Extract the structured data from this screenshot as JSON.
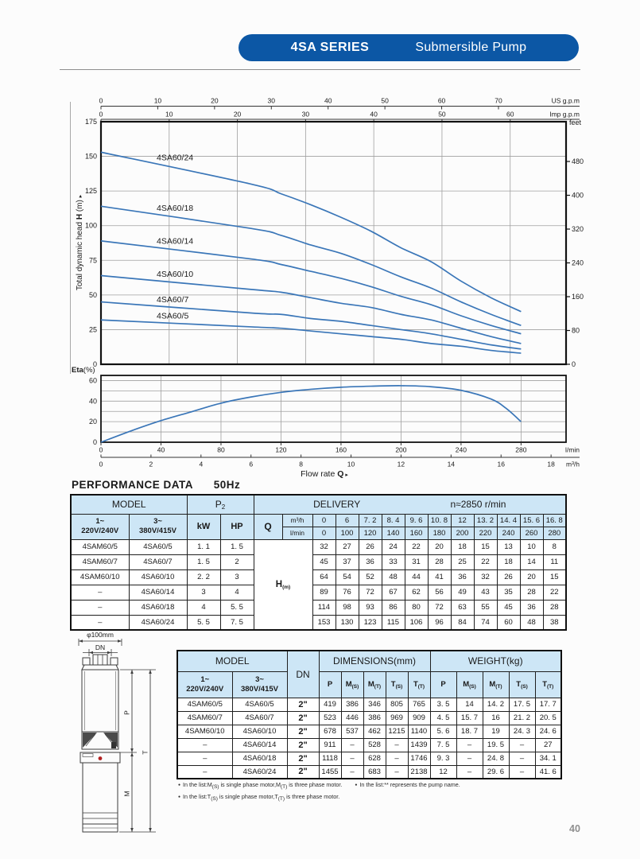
{
  "header": {
    "series": "4SA SERIES",
    "product": "Submersible Pump"
  },
  "page_number": "40",
  "colors": {
    "brand_blue": "#0c57a5",
    "curve_blue": "#3a76b8",
    "table_header_bg": "#cde6f6",
    "grid_gray": "#a0a0a0"
  },
  "chart_data": [
    {
      "type": "line",
      "id": "head-curves",
      "ylabel": "Total dynamic head H (m)",
      "ylim": [
        0,
        175
      ],
      "yticks": [
        0,
        25,
        50,
        75,
        100,
        125,
        150,
        175
      ],
      "right_axis": {
        "label": "feet",
        "ticks": [
          0,
          80,
          160,
          240,
          320,
          400,
          480
        ]
      },
      "top_axis_us": {
        "label": "US g.p.m",
        "ticks": [
          0,
          10,
          20,
          30,
          40,
          50,
          60,
          70
        ]
      },
      "top_axis_imp": {
        "label": "Imp g.p.m",
        "ticks": [
          0,
          10,
          20,
          30,
          40,
          50,
          60
        ]
      },
      "x_lmin": [
        0,
        100,
        120,
        140,
        160,
        180,
        200,
        220,
        240,
        260,
        280
      ],
      "series": [
        {
          "name": "4SA60/24",
          "values": [
            153,
            130,
            123,
            115,
            106,
            96,
            84,
            74,
            60,
            48,
            38
          ]
        },
        {
          "name": "4SA60/18",
          "values": [
            114,
            98,
            93,
            86,
            80,
            72,
            63,
            55,
            45,
            36,
            28
          ]
        },
        {
          "name": "4SA60/14",
          "values": [
            89,
            76,
            72,
            67,
            62,
            56,
            49,
            43,
            35,
            28,
            22
          ]
        },
        {
          "name": "4SA60/10",
          "values": [
            64,
            54,
            52,
            48,
            44,
            41,
            36,
            32,
            26,
            20,
            15
          ]
        },
        {
          "name": "4SA60/7",
          "values": [
            45,
            37,
            36,
            33,
            31,
            28,
            25,
            22,
            18,
            14,
            11
          ]
        },
        {
          "name": "4SA60/5",
          "values": [
            32,
            27,
            26,
            24,
            22,
            20,
            18,
            15,
            13,
            10,
            8
          ]
        }
      ]
    },
    {
      "type": "line",
      "id": "efficiency",
      "ylabel": "Eta(%)",
      "ylabel_bold": "Eta",
      "ylabel_rest": "(%)",
      "ylim": [
        0,
        65
      ],
      "yticks": [
        0,
        20,
        40,
        60
      ],
      "x_lmin": [
        0,
        20,
        40,
        60,
        80,
        100,
        120,
        140,
        160,
        180,
        200,
        220,
        240,
        260,
        270,
        280
      ],
      "values": [
        0,
        11,
        21,
        29.5,
        38,
        44,
        48.5,
        51.5,
        53.5,
        54.5,
        55,
        54,
        50.5,
        42,
        33,
        20
      ],
      "xticks_lmin": [
        0,
        40,
        80,
        120,
        160,
        200,
        240,
        280
      ],
      "xticks_m3h": [
        0,
        2,
        4,
        6,
        8,
        10,
        12,
        14,
        16,
        18
      ],
      "x_unit_lmin": "l/min",
      "x_unit_m3h": "m³/h",
      "xlabel_prefix": "Flow rate",
      "xlabel_q": "Q"
    }
  ],
  "performance": {
    "heading": "PERFORMANCE DATA",
    "freq": "50Hz",
    "model_header": "MODEL",
    "p2_base": "P",
    "p2_sub": "2",
    "delivery_label": "DELIVERY",
    "speed_label": "n≈2850 r/min",
    "col1_line1": "1~",
    "col1_line2": "220V/240V",
    "col2_line1": "3~",
    "col2_line2": "380V/415V",
    "kw": "kW",
    "hp": "HP",
    "q_label": "Q",
    "unit_m3h": "m³/h",
    "unit_lmin": "l/min",
    "h_base": "H",
    "h_sub": "(m)",
    "m3h_values": [
      "0",
      "6",
      "7. 2",
      "8. 4",
      "9. 6",
      "10. 8",
      "12",
      "13. 2",
      "14. 4",
      "15. 6",
      "16. 8"
    ],
    "lmin_values": [
      "0",
      "100",
      "120",
      "140",
      "160",
      "180",
      "200",
      "220",
      "240",
      "260",
      "280"
    ],
    "rows": [
      {
        "m1": "4SAM60/5",
        "m3": "4SA60/5",
        "kw": "1. 1",
        "hp": "1. 5",
        "h": [
          "32",
          "27",
          "26",
          "24",
          "22",
          "20",
          "18",
          "15",
          "13",
          "10",
          "8"
        ]
      },
      {
        "m1": "4SAM60/7",
        "m3": "4SA60/7",
        "kw": "1. 5",
        "hp": "2",
        "h": [
          "45",
          "37",
          "36",
          "33",
          "31",
          "28",
          "25",
          "22",
          "18",
          "14",
          "11"
        ]
      },
      {
        "m1": "4SAM60/10",
        "m3": "4SA60/10",
        "kw": "2. 2",
        "hp": "3",
        "h": [
          "64",
          "54",
          "52",
          "48",
          "44",
          "41",
          "36",
          "32",
          "26",
          "20",
          "15"
        ]
      },
      {
        "m1": "–",
        "m3": "4SA60/14",
        "kw": "3",
        "hp": "4",
        "h": [
          "89",
          "76",
          "72",
          "67",
          "62",
          "56",
          "49",
          "43",
          "35",
          "28",
          "22"
        ]
      },
      {
        "m1": "–",
        "m3": "4SA60/18",
        "kw": "4",
        "hp": "5. 5",
        "h": [
          "114",
          "98",
          "93",
          "86",
          "80",
          "72",
          "63",
          "55",
          "45",
          "36",
          "28"
        ]
      },
      {
        "m1": "–",
        "m3": "4SA60/24",
        "kw": "5. 5",
        "hp": "7. 5",
        "h": [
          "153",
          "130",
          "123",
          "115",
          "106",
          "96",
          "84",
          "74",
          "60",
          "48",
          "38"
        ]
      }
    ]
  },
  "dimensions_table": {
    "model_header": "MODEL",
    "dn_header": "DN",
    "dims_header": "DIMENSIONS(mm)",
    "weight_header": "WEIGHT(kg)",
    "col1_line1": "1~",
    "col1_line2": "220V/240V",
    "col2_line1": "3~",
    "col2_line2": "380V/415V",
    "sub_cols": [
      "P",
      "M(S)",
      "M(T)",
      "T(S)",
      "T(T)"
    ],
    "rows": [
      {
        "m1": "4SAM60/5",
        "m3": "4SA60/5",
        "dn": "2\"",
        "dims": [
          "419",
          "386",
          "346",
          "805",
          "765"
        ],
        "weights": [
          "3. 5",
          "14",
          "14. 2",
          "17. 5",
          "17. 7"
        ]
      },
      {
        "m1": "4SAM60/7",
        "m3": "4SA60/7",
        "dn": "2\"",
        "dims": [
          "523",
          "446",
          "386",
          "969",
          "909"
        ],
        "weights": [
          "4. 5",
          "15. 7",
          "16",
          "21. 2",
          "20. 5"
        ]
      },
      {
        "m1": "4SAM60/10",
        "m3": "4SA60/10",
        "dn": "2\"",
        "dims": [
          "678",
          "537",
          "462",
          "1215",
          "1140"
        ],
        "weights": [
          "5. 6",
          "18. 7",
          "19",
          "24. 3",
          "24. 6"
        ]
      },
      {
        "m1": "–",
        "m3": "4SA60/14",
        "dn": "2\"",
        "dims": [
          "911",
          "–",
          "528",
          "–",
          "1439"
        ],
        "weights": [
          "7. 5",
          "–",
          "19. 5",
          "–",
          "27"
        ]
      },
      {
        "m1": "–",
        "m3": "4SA60/18",
        "dn": "2\"",
        "dims": [
          "1118",
          "–",
          "628",
          "–",
          "1746"
        ],
        "weights": [
          "9. 3",
          "–",
          "24. 8",
          "–",
          "34. 1"
        ]
      },
      {
        "m1": "–",
        "m3": "4SA60/24",
        "dn": "2\"",
        "dims": [
          "1455",
          "–",
          "683",
          "–",
          "2138"
        ],
        "weights": [
          "12",
          "–",
          "29. 6",
          "–",
          "41. 6"
        ]
      }
    ]
  },
  "diagram": {
    "dia": "φ100mm",
    "dn": "DN",
    "p": "P",
    "t": "T",
    "m": "M"
  },
  "footnotes": [
    "In the list:M(S) is single phase motor,M(T) is three phase motor.",
    "In the list:** represents the pump name.",
    "In the list:T(S) is single phase motor,T(T) is three phase motor."
  ]
}
